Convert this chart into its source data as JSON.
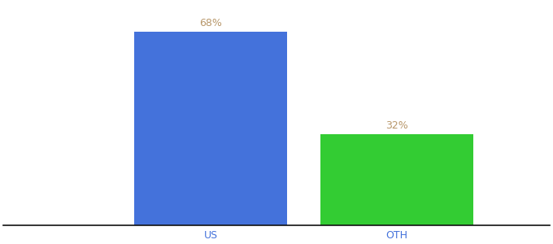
{
  "categories": [
    "US",
    "OTH"
  ],
  "values": [
    68,
    32
  ],
  "bar_colors": [
    "#4472db",
    "#33cc33"
  ],
  "label_color": "#b8976a",
  "label_fontsize": 9,
  "tick_fontsize": 9,
  "tick_color": "#4472db",
  "background_color": "#ffffff",
  "ylim": [
    0,
    78
  ],
  "bar_width": 0.28,
  "spine_color": "#111111",
  "x_positions": [
    0.38,
    0.72
  ],
  "xlim": [
    0.0,
    1.0
  ]
}
